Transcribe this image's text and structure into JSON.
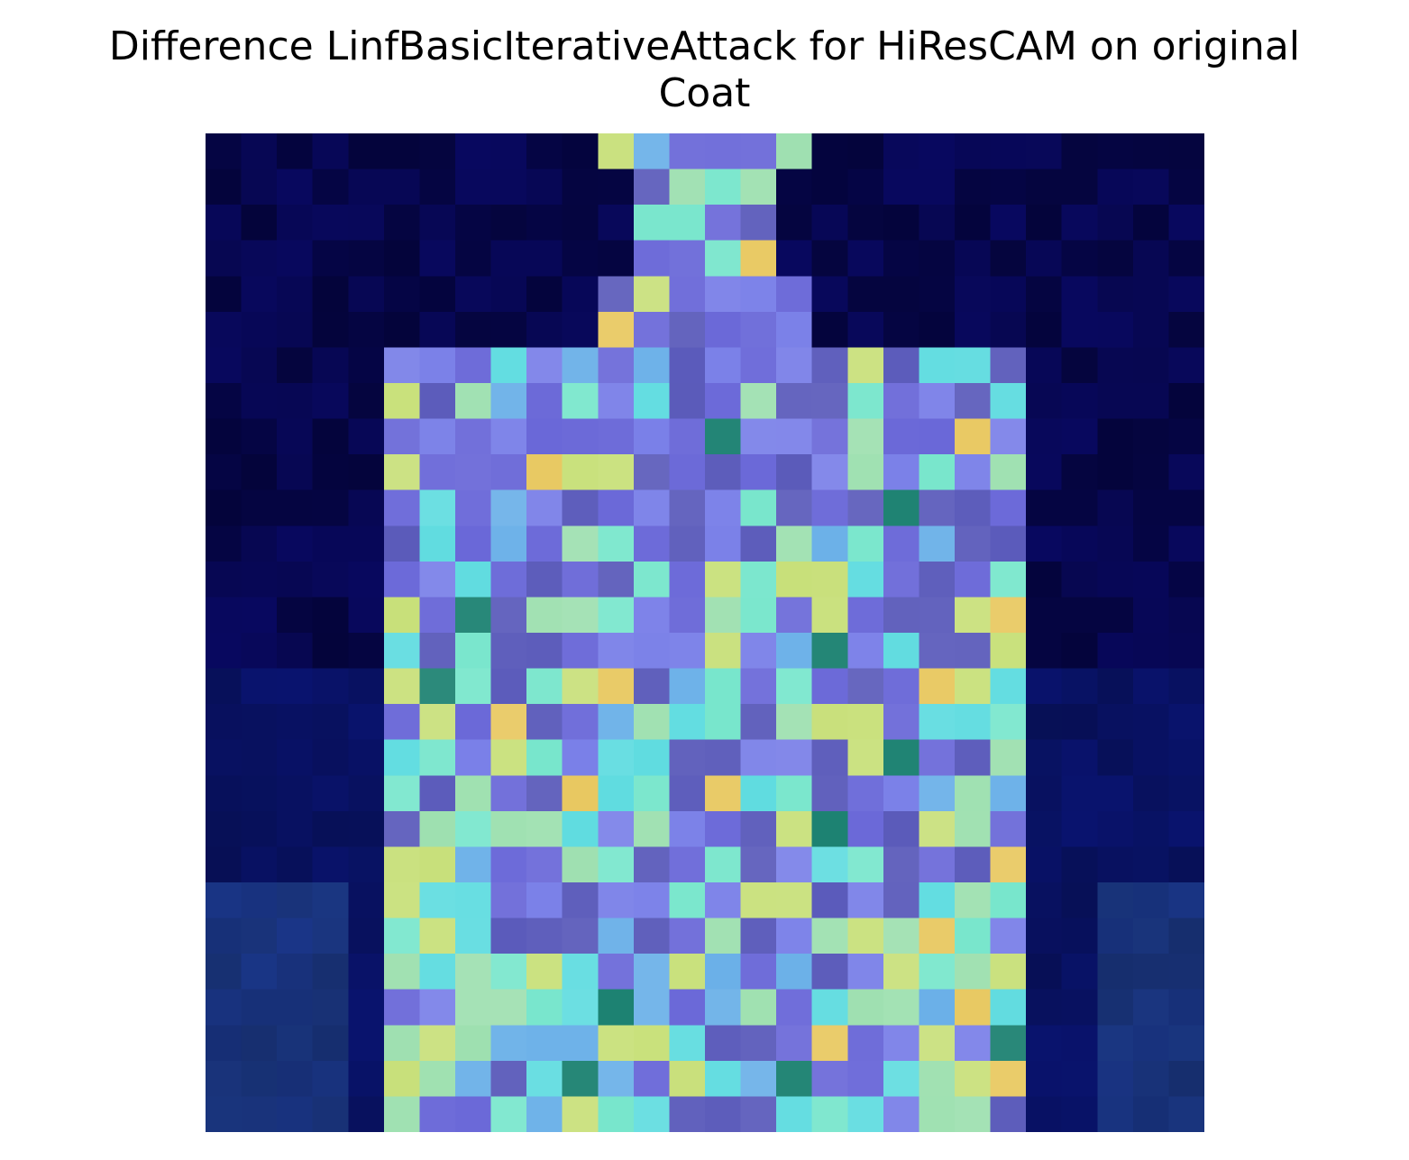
{
  "figure": {
    "title_line1": "Difference LinfBasicIterativeAttack for HiResCAM on original",
    "title_line2": "Coat"
  },
  "image_data": {
    "type": "heatmap",
    "rows": 28,
    "cols": 28,
    "palette": {
      "dark_navy": "#050545",
      "navy": "#08085f",
      "deep_blue": "#0a1a78",
      "indigo": "#5a5aba",
      "violet": "#6a68d8",
      "periwinkle": "#7a80e8",
      "sky": "#6ab0e8",
      "cyan": "#60dce0",
      "aqua": "#78e6cc",
      "mint": "#9ee0b0",
      "lime": "#c8e07a",
      "yellow": "#e8c860",
      "teal": "#1a8070",
      "steel": "#3a78b8"
    }
  }
}
